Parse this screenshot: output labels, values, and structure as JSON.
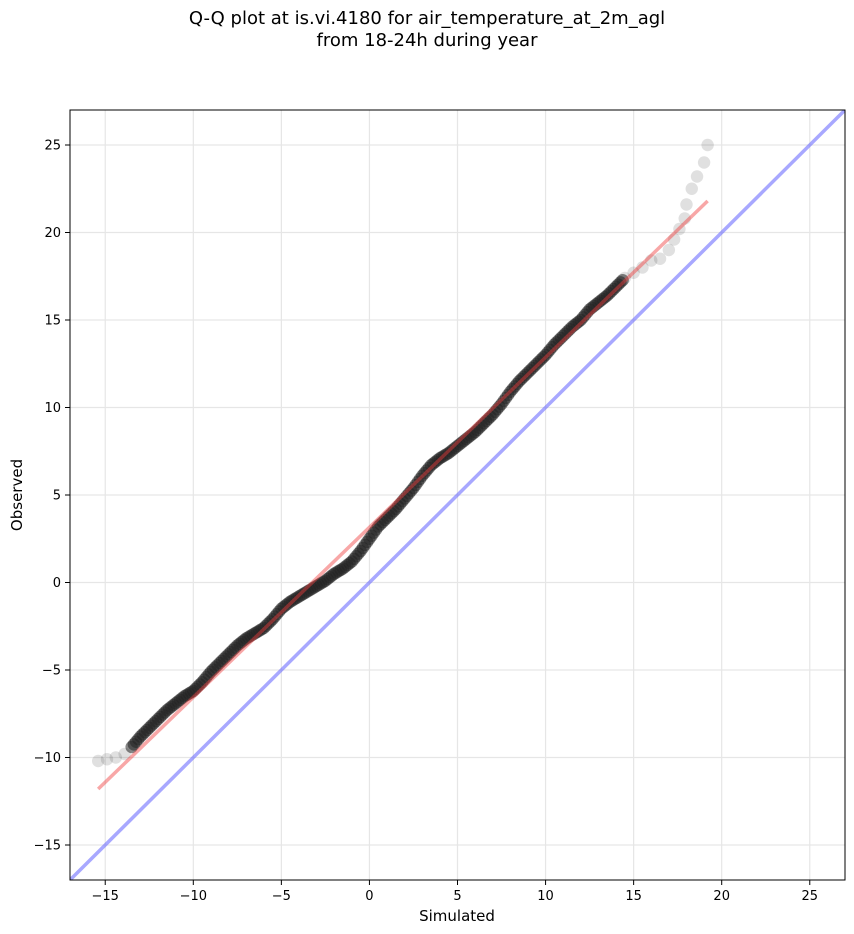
{
  "title_line1": "Q-Q plot at is.vi.4180 for air_temperature_at_2m_agl",
  "title_line2": "from 18-24h during year",
  "chart_data": {
    "type": "scatter",
    "xlabel": "Simulated",
    "ylabel": "Observed",
    "xlim": [
      -17,
      27
    ],
    "ylim": [
      -17,
      27
    ],
    "xticks": [
      -15,
      -10,
      -5,
      0,
      5,
      10,
      15,
      20,
      25
    ],
    "yticks": [
      -15,
      -10,
      -5,
      0,
      5,
      10,
      15,
      20,
      25
    ],
    "xtick_labels": [
      "−15",
      "−10",
      "−5",
      "0",
      "5",
      "10",
      "15",
      "20",
      "25"
    ],
    "ytick_labels": [
      "−15",
      "−10",
      "−5",
      "0",
      "5",
      "10",
      "15",
      "20",
      "25"
    ],
    "grid": true,
    "series": [
      {
        "kind": "quantile-points",
        "color": "#222222",
        "points": [
          [
            -15.4,
            -10.2
          ],
          [
            -14.9,
            -10.1
          ],
          [
            -14.4,
            -10.0
          ],
          [
            -13.9,
            -9.8
          ],
          [
            -13.5,
            -9.4
          ],
          [
            -13.0,
            -8.8
          ],
          [
            -12.5,
            -8.3
          ],
          [
            -12.0,
            -7.8
          ],
          [
            -11.5,
            -7.3
          ],
          [
            -11.0,
            -6.9
          ],
          [
            -10.5,
            -6.5
          ],
          [
            -10.0,
            -6.2
          ],
          [
            -9.5,
            -5.7
          ],
          [
            -9.0,
            -5.1
          ],
          [
            -8.5,
            -4.6
          ],
          [
            -8.0,
            -4.1
          ],
          [
            -7.5,
            -3.6
          ],
          [
            -7.0,
            -3.2
          ],
          [
            -6.5,
            -2.9
          ],
          [
            -6.0,
            -2.6
          ],
          [
            -5.5,
            -2.1
          ],
          [
            -5.0,
            -1.5
          ],
          [
            -4.5,
            -1.1
          ],
          [
            -4.0,
            -0.8
          ],
          [
            -3.5,
            -0.5
          ],
          [
            -3.0,
            -0.2
          ],
          [
            -2.5,
            0.1
          ],
          [
            -2.0,
            0.5
          ],
          [
            -1.5,
            0.8
          ],
          [
            -1.0,
            1.2
          ],
          [
            -0.5,
            1.8
          ],
          [
            0.0,
            2.5
          ],
          [
            0.5,
            3.2
          ],
          [
            1.0,
            3.7
          ],
          [
            1.5,
            4.2
          ],
          [
            2.0,
            4.8
          ],
          [
            2.5,
            5.4
          ],
          [
            3.0,
            6.1
          ],
          [
            3.5,
            6.7
          ],
          [
            4.0,
            7.1
          ],
          [
            4.5,
            7.4
          ],
          [
            5.0,
            7.8
          ],
          [
            5.5,
            8.2
          ],
          [
            6.0,
            8.6
          ],
          [
            6.5,
            9.1
          ],
          [
            7.0,
            9.6
          ],
          [
            7.5,
            10.2
          ],
          [
            8.0,
            10.9
          ],
          [
            8.5,
            11.5
          ],
          [
            9.0,
            12.0
          ],
          [
            9.5,
            12.5
          ],
          [
            10.0,
            13.0
          ],
          [
            10.5,
            13.6
          ],
          [
            11.0,
            14.1
          ],
          [
            11.5,
            14.6
          ],
          [
            12.0,
            15.0
          ],
          [
            12.5,
            15.6
          ],
          [
            13.0,
            16.0
          ],
          [
            13.5,
            16.4
          ],
          [
            14.0,
            16.9
          ],
          [
            14.5,
            17.4
          ],
          [
            15.0,
            17.7
          ],
          [
            15.5,
            18.0
          ],
          [
            16.0,
            18.4
          ],
          [
            16.5,
            18.5
          ],
          [
            17.0,
            19.0
          ],
          [
            17.3,
            19.6
          ],
          [
            17.6,
            20.2
          ],
          [
            17.9,
            20.8
          ],
          [
            18.0,
            21.6
          ],
          [
            18.3,
            22.5
          ],
          [
            18.6,
            23.2
          ],
          [
            19.0,
            24.0
          ],
          [
            19.2,
            25.0
          ]
        ]
      },
      {
        "kind": "regression-line",
        "color": "#f03c3c",
        "x": [
          -15.4,
          19.2
        ],
        "y": [
          -11.8,
          21.8
        ]
      },
      {
        "kind": "one-to-one-line",
        "color": "#6060ff",
        "x": [
          -17,
          27
        ],
        "y": [
          -17,
          27
        ]
      }
    ]
  }
}
